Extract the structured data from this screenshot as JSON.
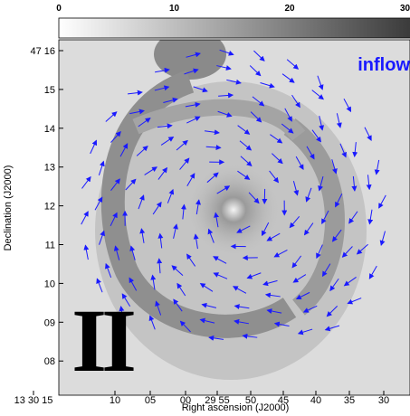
{
  "colorbar": {
    "ticks": [
      "0",
      "10",
      "20",
      "30"
    ]
  },
  "axes": {
    "y": {
      "label": "Declination (J2000)",
      "ticks": [
        "47 16",
        "15",
        "14",
        "13",
        "12",
        "11",
        "10",
        "09",
        "08"
      ]
    },
    "x": {
      "label": "Right ascension (J2000)",
      "ticks": [
        "13 30 15",
        "10",
        "05",
        "00",
        "29 55",
        "50",
        "45",
        "40",
        "35",
        "30"
      ]
    }
  },
  "annotation": "inflow",
  "panel_label": "II"
}
